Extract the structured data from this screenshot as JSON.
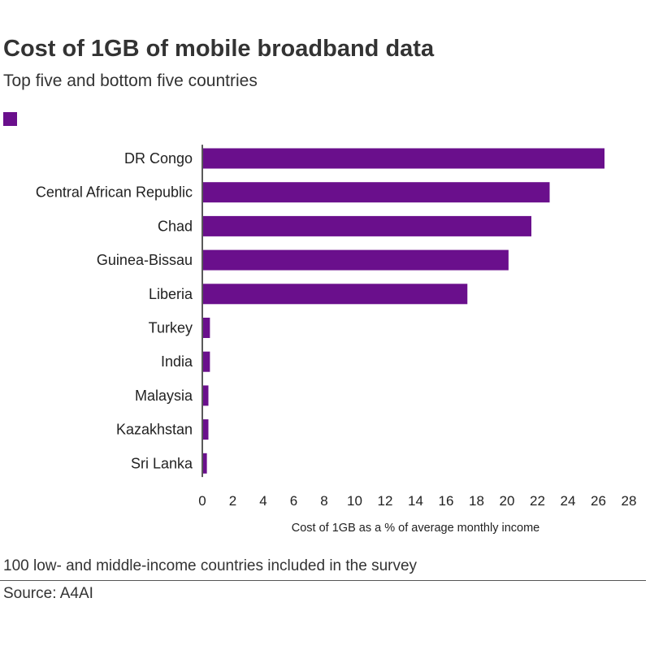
{
  "title": "Cost of 1GB of mobile broadband data",
  "subtitle": "Top five and bottom five countries",
  "footnote": "100 low- and middle-income countries included in the survey",
  "source": "Source: A4AI",
  "colors": {
    "bar": "#6a0f8c",
    "axis": "#222222",
    "text": "#222222"
  },
  "chart_data": {
    "type": "bar",
    "orientation": "horizontal",
    "title": "Cost of 1GB of mobile broadband data",
    "subtitle": "Top five and bottom five countries",
    "xlabel": "Cost of 1GB as a % of average monthly income",
    "ylabel": "",
    "xlim": [
      0,
      28
    ],
    "xticks": [
      "0",
      "2",
      "4",
      "6",
      "8",
      "10",
      "12",
      "14",
      "16",
      "18",
      "20",
      "22",
      "24",
      "26",
      "28"
    ],
    "grid": false,
    "legend": "top-left",
    "categories": [
      "DR Congo",
      "Central African Republic",
      "Chad",
      "Guinea-Bissau",
      "Liberia",
      "Turkey",
      "India",
      "Malaysia",
      "Kazakhstan",
      "Sri Lanka"
    ],
    "series": [
      {
        "values": [
          26.4,
          22.8,
          21.6,
          20.1,
          17.4,
          0.5,
          0.5,
          0.4,
          0.4,
          0.3
        ]
      }
    ]
  }
}
